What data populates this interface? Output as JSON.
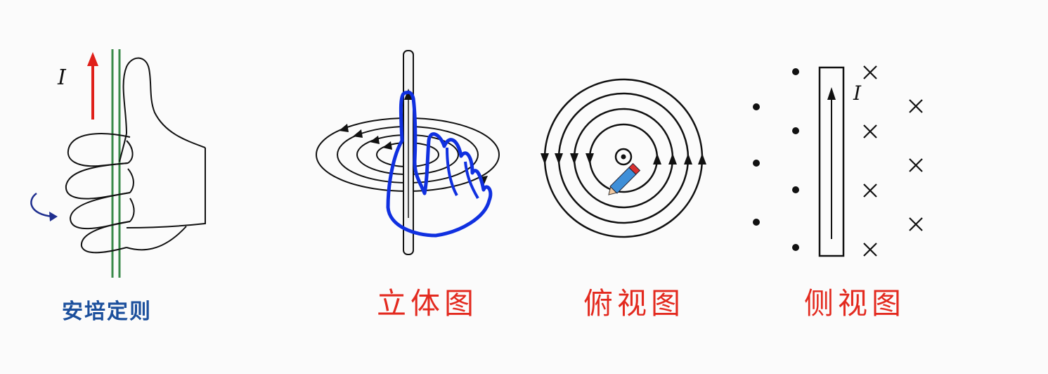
{
  "captions": {
    "ampere_rule": "安培定则",
    "perspective_view": "立体图",
    "top_view": "俯视图",
    "side_view": "侧视图"
  },
  "labels": {
    "current_left": "I",
    "current_side": "I"
  },
  "colors": {
    "caption_red": "#e32a1f",
    "caption_blue": "#1b4f9c",
    "current_arrow": "#e0201a",
    "curl_arrow": "#1f2f8f",
    "wire_green": "#3a8a4a",
    "annotation_blue": "#1030e0",
    "line": "#111111"
  },
  "icons": {
    "hand": "right-hand-grip-icon",
    "pencil": "pencil-cursor-icon"
  }
}
